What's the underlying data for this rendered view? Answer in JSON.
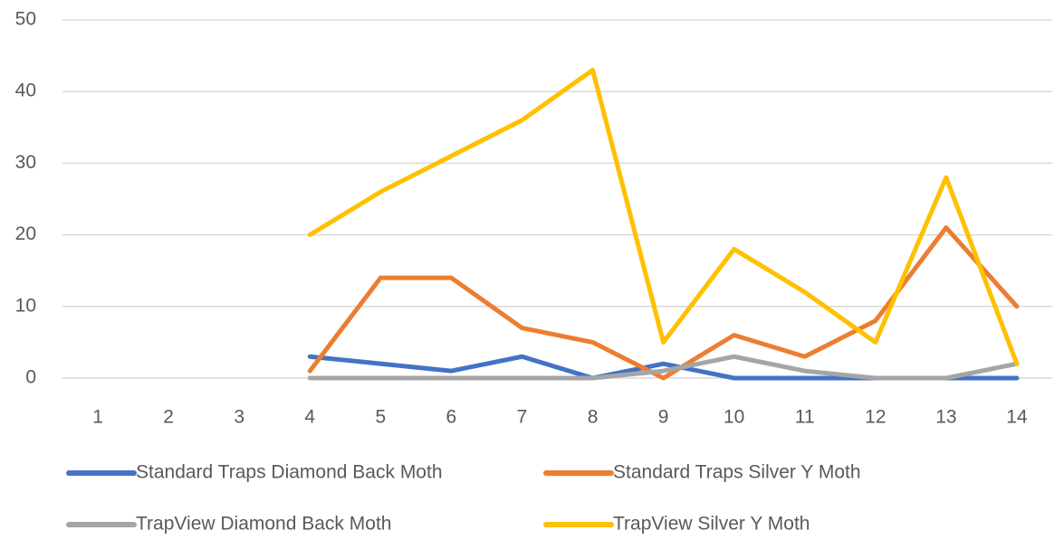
{
  "chart_data": {
    "type": "line",
    "categories": [
      "1",
      "2",
      "3",
      "4",
      "5",
      "6",
      "7",
      "8",
      "9",
      "10",
      "11",
      "12",
      "13",
      "14"
    ],
    "series": [
      {
        "name": "Standard Traps Diamond Back Moth",
        "color": "#4472c4",
        "values": [
          null,
          null,
          null,
          3,
          2,
          1,
          3,
          0,
          2,
          0,
          0,
          0,
          0,
          0
        ]
      },
      {
        "name": "Standard Traps Silver Y Moth",
        "color": "#ed7d31",
        "values": [
          null,
          null,
          null,
          1,
          14,
          14,
          7,
          5,
          0,
          6,
          3,
          8,
          21,
          10
        ]
      },
      {
        "name": "TrapView Diamond Back Moth",
        "color": "#a5a5a5",
        "values": [
          null,
          null,
          null,
          0,
          0,
          0,
          0,
          0,
          1,
          3,
          1,
          0,
          0,
          2
        ]
      },
      {
        "name": "TrapView Silver Y Moth",
        "color": "#ffc000",
        "values": [
          null,
          null,
          null,
          20,
          26,
          31,
          36,
          43,
          5,
          18,
          12,
          5,
          28,
          2
        ]
      }
    ],
    "ylim": [
      0,
      50
    ],
    "yticks": [
      0,
      10,
      20,
      30,
      40,
      50
    ],
    "grid": true,
    "legend": "bottom"
  }
}
